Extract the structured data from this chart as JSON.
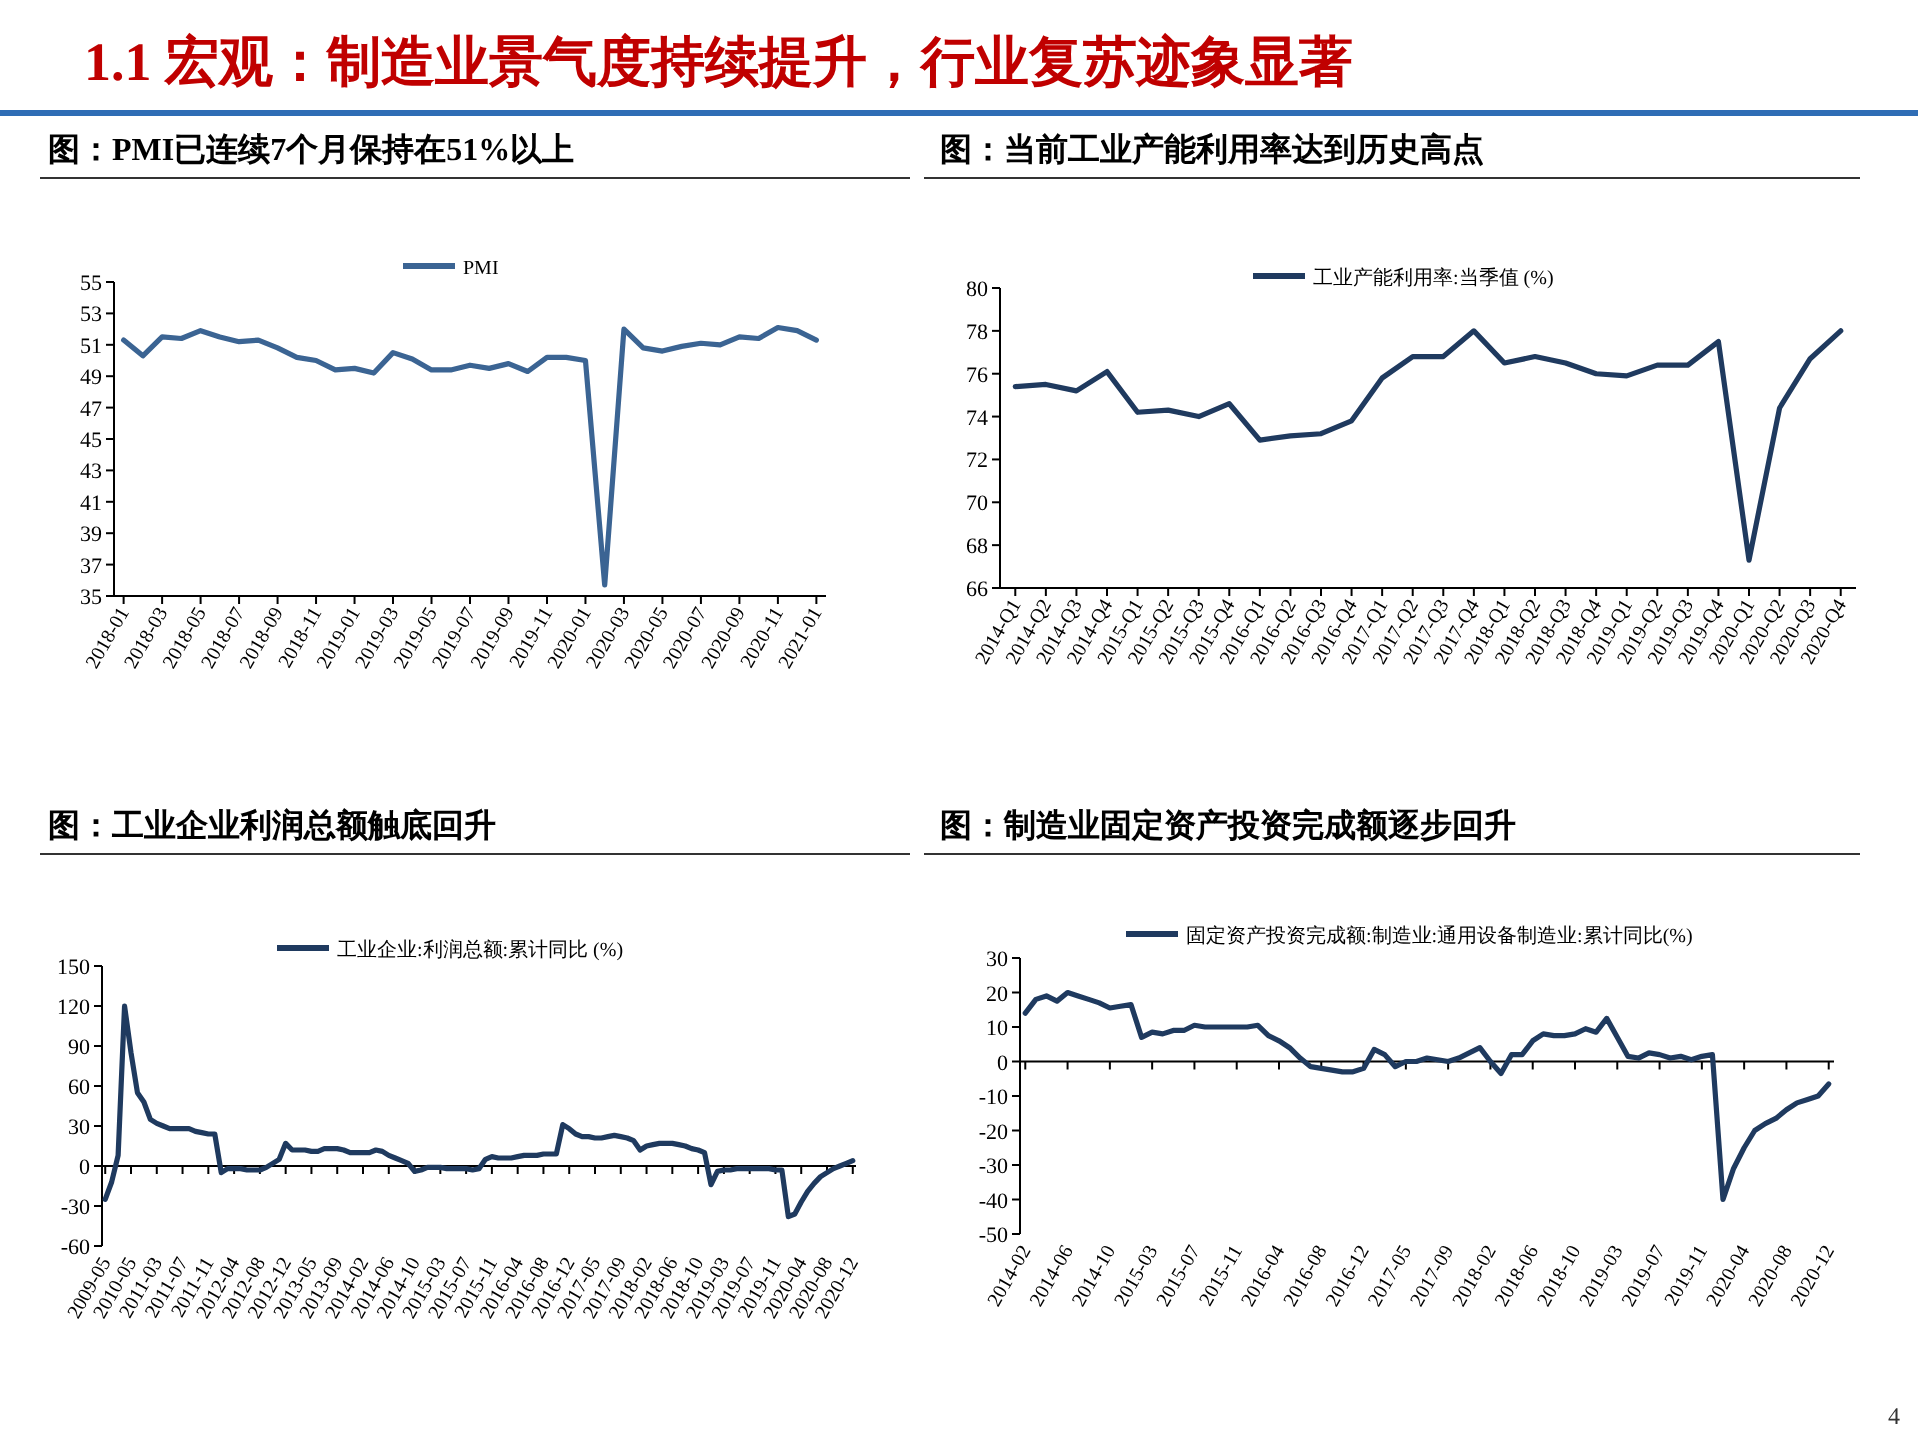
{
  "chart_data": [
    {
      "type": "other",
      "title": "1.1 宏观：制造业景气度持续提升，行业复苏迹象显著",
      "annotations": [
        "4"
      ]
    },
    {
      "type": "line",
      "title": "图：PMI已连续7个月保持在51%以上",
      "legend": "top",
      "categories": [
        "2018-01",
        null,
        "2018-03",
        null,
        "2018-05",
        null,
        "2018-07",
        null,
        "2018-09",
        null,
        "2018-11",
        null,
        "2019-01",
        null,
        "2019-03",
        null,
        "2019-05",
        null,
        "2019-07",
        null,
        "2019-09",
        null,
        "2019-11",
        null,
        "2020-01",
        null,
        "2020-03",
        null,
        "2020-05",
        null,
        "2020-07",
        null,
        "2020-09",
        null,
        "2020-11",
        null,
        "2021-01"
      ],
      "series": [
        {
          "name": "PMI",
          "color": "#3b6493",
          "values": [
            51.3,
            50.3,
            51.5,
            51.4,
            51.9,
            51.5,
            51.2,
            51.3,
            50.8,
            50.2,
            50.0,
            49.4,
            49.5,
            49.2,
            50.5,
            50.1,
            49.4,
            49.4,
            49.7,
            49.5,
            49.8,
            49.3,
            50.2,
            50.2,
            50.0,
            35.7,
            52.0,
            50.8,
            50.6,
            50.9,
            51.1,
            51.0,
            51.5,
            51.4,
            52.1,
            51.9,
            51.3
          ]
        }
      ],
      "ylim": [
        35,
        55
      ],
      "yticks": [
        35,
        37,
        39,
        41,
        43,
        45,
        47,
        49,
        51,
        53,
        55
      ]
    },
    {
      "type": "line",
      "title": "图：当前工业产能利用率达到历史高点",
      "legend": "top",
      "categories": [
        "2014-Q1",
        "2014-Q2",
        "2014-Q3",
        "2014-Q4",
        "2015-Q1",
        "2015-Q2",
        "2015-Q3",
        "2015-Q4",
        "2016-Q1",
        "2016-Q2",
        "2016-Q3",
        "2016-Q4",
        "2017-Q1",
        "2017-Q2",
        "2017-Q3",
        "2017-Q4",
        "2018-Q1",
        "2018-Q2",
        "2018-Q3",
        "2018-Q4",
        "2019-Q1",
        "2019-Q2",
        "2019-Q3",
        "2019-Q4",
        "2020-Q1",
        "2020-Q2",
        "2020-Q3",
        "2020-Q4"
      ],
      "series": [
        {
          "name": "工业产能利用率:当季值 (%)",
          "color": "#1f3a5f",
          "values": [
            75.4,
            75.5,
            75.2,
            76.1,
            74.2,
            74.3,
            74.0,
            74.6,
            72.9,
            73.1,
            73.2,
            73.8,
            75.8,
            76.8,
            76.8,
            78.0,
            76.5,
            76.8,
            76.5,
            76.0,
            75.9,
            76.4,
            76.4,
            77.5,
            67.3,
            74.4,
            76.7,
            78.0
          ]
        }
      ],
      "ylim": [
        66,
        80
      ],
      "yticks": [
        66,
        68,
        70,
        72,
        74,
        76,
        78,
        80
      ]
    },
    {
      "type": "line",
      "title": "图：工业企业利润总额触底回升",
      "legend": "top",
      "categories": [
        "2009-05",
        null,
        null,
        null,
        "2010-05",
        null,
        null,
        null,
        "2011-03",
        null,
        null,
        null,
        "2011-07",
        null,
        null,
        null,
        "2011-11",
        null,
        null,
        null,
        "2012-04",
        null,
        null,
        null,
        "2012-08",
        null,
        null,
        null,
        "2012-12",
        null,
        null,
        null,
        "2013-05",
        null,
        null,
        null,
        "2013-09",
        null,
        null,
        null,
        "2014-02",
        null,
        null,
        null,
        "2014-06",
        null,
        null,
        null,
        "2014-10",
        null,
        null,
        null,
        "2015-03",
        null,
        null,
        null,
        "2015-07",
        null,
        null,
        null,
        "2015-11",
        null,
        null,
        null,
        "2016-04",
        null,
        null,
        null,
        "2016-08",
        null,
        null,
        null,
        "2016-12",
        null,
        null,
        null,
        "2017-05",
        null,
        null,
        null,
        "2017-09",
        null,
        null,
        null,
        "2018-02",
        null,
        null,
        null,
        "2018-06",
        null,
        null,
        null,
        "2018-10",
        null,
        null,
        null,
        "2019-03",
        null,
        null,
        null,
        "2019-07",
        null,
        null,
        null,
        "2019-11",
        null,
        null,
        null,
        "2020-04",
        null,
        null,
        null,
        "2020-08",
        null,
        null,
        null,
        "2020-12"
      ],
      "series": [
        {
          "name": "工业企业:利润总额:累计同比 (%)",
          "color": "#1f3a5f",
          "values": [
            -25,
            -12,
            8,
            120,
            85,
            55,
            48,
            35,
            32,
            30,
            28,
            28,
            28,
            28,
            26,
            25,
            24,
            24,
            -5,
            -2,
            -2,
            -2,
            -3,
            -3,
            -3,
            -1,
            2,
            5,
            17,
            12,
            12,
            12,
            11,
            11,
            13,
            13,
            13,
            12,
            10,
            10,
            10,
            10,
            12,
            11,
            8,
            6,
            4,
            2,
            -4,
            -3,
            -1,
            -1,
            -1,
            -2,
            -2,
            -2,
            -2,
            -3,
            -2,
            5,
            7,
            6,
            6,
            6,
            7,
            8,
            8,
            8,
            9,
            9,
            9,
            31,
            28,
            24,
            22,
            22,
            21,
            21,
            22,
            23,
            22,
            21,
            19,
            12,
            15,
            16,
            17,
            17,
            17,
            16,
            15,
            13,
            12,
            10,
            -14,
            -4,
            -3,
            -3,
            -2,
            -2,
            -2,
            -2,
            -2,
            -2,
            -3,
            -3,
            -38,
            -36,
            -27,
            -19,
            -13,
            -8,
            -5,
            -2,
            0,
            2,
            4
          ]
        }
      ],
      "ylim": [
        -60,
        150
      ],
      "yticks": [
        -60,
        -30,
        0,
        30,
        60,
        90,
        120,
        150
      ]
    },
    {
      "type": "line",
      "title": "图：制造业固定资产投资完成额逐步回升",
      "legend": "top",
      "categories": [
        "2014-02",
        null,
        null,
        null,
        "2014-06",
        null,
        null,
        null,
        "2014-10",
        null,
        null,
        null,
        "2015-03",
        null,
        null,
        null,
        "2015-07",
        null,
        null,
        null,
        "2015-11",
        null,
        null,
        null,
        "2016-04",
        null,
        null,
        null,
        "2016-08",
        null,
        null,
        null,
        "2016-12",
        null,
        null,
        null,
        "2017-05",
        null,
        null,
        null,
        "2017-09",
        null,
        null,
        null,
        "2018-02",
        null,
        null,
        null,
        "2018-06",
        null,
        null,
        null,
        "2018-10",
        null,
        null,
        null,
        "2019-03",
        null,
        null,
        null,
        "2019-07",
        null,
        null,
        null,
        "2019-11",
        null,
        null,
        null,
        "2020-04",
        null,
        null,
        null,
        "2020-08",
        null,
        null,
        null,
        "2020-12"
      ],
      "series": [
        {
          "name": "固定资产投资完成额:制造业:通用设备制造业:累计同比(%)",
          "color": "#1f3a5f",
          "values": [
            14,
            18,
            19,
            17.5,
            20,
            19,
            18,
            17,
            15.5,
            16,
            16.5,
            7,
            8.5,
            8,
            9,
            9,
            10.5,
            10,
            10,
            10,
            10,
            10,
            10.5,
            7.5,
            6,
            4,
            1,
            -1.5,
            -2,
            -2.5,
            -3,
            -3,
            -2,
            3.5,
            2,
            -1.5,
            0,
            0,
            1,
            0.5,
            0,
            1,
            2.5,
            4,
            0,
            -3.5,
            2,
            2,
            6,
            8,
            7.5,
            7.5,
            8,
            9.5,
            8.5,
            12.5,
            7,
            1.5,
            1,
            2.5,
            2,
            1,
            1.5,
            0.5,
            1.5,
            2,
            -40,
            -31,
            -25,
            -20,
            -18,
            -16.5,
            -14,
            -12,
            -11,
            -10,
            -6.5
          ]
        }
      ],
      "ylim": [
        -50,
        30
      ],
      "yticks": [
        -50,
        -40,
        -30,
        -20,
        -10,
        0,
        10,
        20,
        30
      ]
    }
  ]
}
